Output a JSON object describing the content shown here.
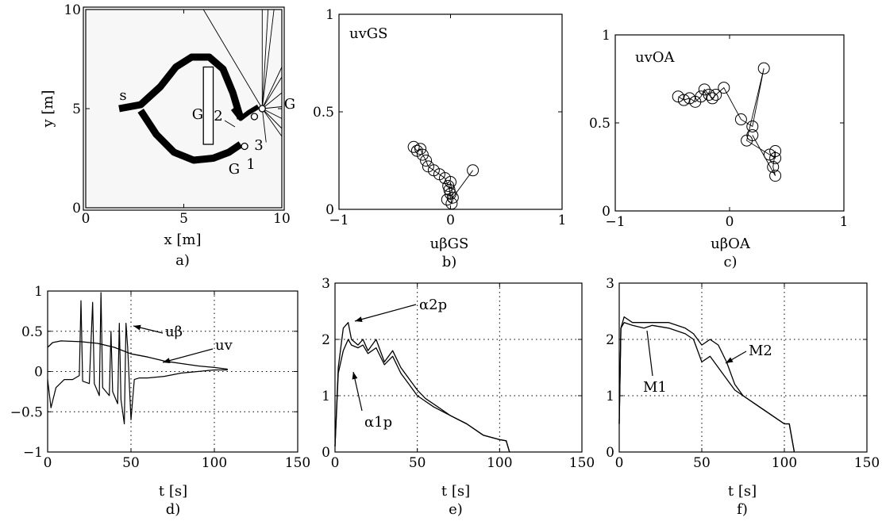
{
  "panels": [
    {
      "key": "a",
      "caption": "a)",
      "xlabel": "x [m]",
      "ylabel": "y [m]"
    },
    {
      "key": "b",
      "caption": "b)",
      "xlabel": "uβGS",
      "inner_label": "uvGS"
    },
    {
      "key": "c",
      "caption": "c)",
      "xlabel": "uβOA",
      "inner_label": "uvOA"
    },
    {
      "key": "d",
      "caption": "d)",
      "xlabel": "t [s]"
    },
    {
      "key": "e",
      "caption": "e)",
      "xlabel": "t [s]"
    },
    {
      "key": "f",
      "caption": "f)",
      "xlabel": "t [s]"
    }
  ],
  "chart_data": [
    {
      "id": "a",
      "type": "scatter",
      "xlim": [
        0,
        10
      ],
      "ylim": [
        0,
        10
      ],
      "xticks": [
        0,
        5,
        10
      ],
      "yticks": [
        0,
        5,
        10
      ],
      "xlabel": "x [m]",
      "ylabel": "y [m]",
      "annotations": [
        "s",
        "G",
        "G",
        "G",
        "1",
        "2",
        "3"
      ],
      "paths": {
        "upper": [
          [
            1.7,
            5.0
          ],
          [
            2.8,
            5.2
          ],
          [
            3.8,
            6.1
          ],
          [
            4.6,
            7.1
          ],
          [
            5.4,
            7.6
          ],
          [
            6.3,
            7.6
          ],
          [
            7.0,
            7.0
          ],
          [
            7.5,
            5.8
          ],
          [
            7.9,
            4.5
          ]
        ],
        "lower": [
          [
            2.8,
            4.9
          ],
          [
            3.6,
            3.7
          ],
          [
            4.5,
            2.8
          ],
          [
            5.5,
            2.4
          ],
          [
            6.5,
            2.5
          ],
          [
            7.3,
            2.8
          ],
          [
            7.9,
            3.2
          ]
        ],
        "branch2": [
          [
            7.5,
            5.0
          ],
          [
            7.9,
            4.5
          ],
          [
            8.3,
            4.8
          ],
          [
            8.8,
            5.1
          ]
        ],
        "ray_origin": [
          9.0,
          5.0
        ],
        "ray_ends": [
          [
            6.0,
            10.0
          ],
          [
            9.0,
            10.0
          ],
          [
            9.3,
            10.0
          ],
          [
            9.6,
            10.0
          ],
          [
            10.0,
            7.1
          ],
          [
            10.0,
            6.6
          ],
          [
            10.0,
            5.8
          ],
          [
            10.0,
            5.1
          ],
          [
            10.0,
            4.5
          ],
          [
            10.0,
            4.0
          ],
          [
            10.0,
            3.6
          ],
          [
            9.2,
            3.3
          ]
        ],
        "obstacle": {
          "x0": 6.0,
          "x1": 6.5,
          "y0": 3.2,
          "y1": 7.1
        },
        "goals": [
          [
            8.1,
            3.1
          ],
          [
            8.6,
            4.6
          ],
          [
            9.0,
            5.0
          ]
        ]
      }
    },
    {
      "id": "b",
      "type": "scatter",
      "xlim": [
        -1,
        1
      ],
      "ylim": [
        0,
        1
      ],
      "xticks": [
        -1,
        0,
        1
      ],
      "yticks": [
        0,
        0.5,
        1
      ],
      "xlabel": "uβGS",
      "ylabel": "uvGS",
      "points": [
        [
          -0.33,
          0.32
        ],
        [
          -0.3,
          0.3
        ],
        [
          -0.27,
          0.31
        ],
        [
          -0.25,
          0.28
        ],
        [
          -0.22,
          0.25
        ],
        [
          -0.2,
          0.22
        ],
        [
          -0.15,
          0.2
        ],
        [
          -0.1,
          0.18
        ],
        [
          -0.05,
          0.16
        ],
        [
          -0.02,
          0.12
        ],
        [
          0.0,
          0.08
        ],
        [
          -0.03,
          0.05
        ],
        [
          0.01,
          0.03
        ],
        [
          -0.01,
          0.1
        ],
        [
          0.0,
          0.14
        ],
        [
          0.02,
          0.06
        ],
        [
          0.2,
          0.2
        ]
      ]
    },
    {
      "id": "c",
      "type": "scatter",
      "xlim": [
        -1,
        1
      ],
      "ylim": [
        0,
        1
      ],
      "xticks": [
        -1,
        0,
        1
      ],
      "yticks": [
        0,
        0.5,
        1
      ],
      "xlabel": "uβOA",
      "ylabel": "uvOA",
      "points": [
        [
          -0.45,
          0.65
        ],
        [
          -0.4,
          0.63
        ],
        [
          -0.35,
          0.64
        ],
        [
          -0.3,
          0.62
        ],
        [
          -0.25,
          0.65
        ],
        [
          -0.22,
          0.69
        ],
        [
          -0.18,
          0.66
        ],
        [
          -0.15,
          0.64
        ],
        [
          -0.12,
          0.66
        ],
        [
          -0.05,
          0.7
        ],
        [
          0.1,
          0.52
        ],
        [
          0.2,
          0.48
        ],
        [
          0.3,
          0.81
        ],
        [
          0.15,
          0.4
        ],
        [
          0.35,
          0.32
        ],
        [
          0.4,
          0.3
        ],
        [
          0.4,
          0.34
        ],
        [
          0.38,
          0.25
        ],
        [
          0.4,
          0.2
        ],
        [
          0.2,
          0.43
        ]
      ]
    },
    {
      "id": "d",
      "type": "line",
      "xlim": [
        0,
        150
      ],
      "ylim": [
        -1,
        1
      ],
      "xticks": [
        0,
        50,
        100,
        150
      ],
      "yticks": [
        -1,
        -0.5,
        0,
        0.5,
        1
      ],
      "xlabel": "t [s]",
      "grid": true,
      "annotations": [
        "uβ",
        "uv"
      ],
      "series": [
        {
          "name": "uv",
          "points": [
            [
              0,
              0.3
            ],
            [
              3,
              0.36
            ],
            [
              8,
              0.38
            ],
            [
              20,
              0.37
            ],
            [
              30,
              0.35
            ],
            [
              40,
              0.3
            ],
            [
              50,
              0.22
            ],
            [
              60,
              0.18
            ],
            [
              70,
              0.13
            ],
            [
              80,
              0.1
            ],
            [
              90,
              0.07
            ],
            [
              100,
              0.05
            ],
            [
              108,
              0.03
            ]
          ]
        },
        {
          "name": "uβ",
          "points": [
            [
              0,
              -0.1
            ],
            [
              2,
              -0.45
            ],
            [
              5,
              -0.2
            ],
            [
              10,
              -0.1
            ],
            [
              15,
              -0.1
            ],
            [
              19,
              -0.05
            ],
            [
              20,
              0.88
            ],
            [
              21,
              -0.12
            ],
            [
              25,
              -0.15
            ],
            [
              27,
              0.86
            ],
            [
              28,
              -0.15
            ],
            [
              31,
              -0.3
            ],
            [
              32,
              0.98
            ],
            [
              33,
              -0.2
            ],
            [
              37,
              -0.3
            ],
            [
              38,
              0.5
            ],
            [
              39,
              -0.25
            ],
            [
              42,
              -0.4
            ],
            [
              43,
              0.6
            ],
            [
              44,
              -0.35
            ],
            [
              46,
              -0.65
            ],
            [
              47,
              0.6
            ],
            [
              48,
              0.3
            ],
            [
              50,
              -0.6
            ],
            [
              52,
              -0.1
            ],
            [
              55,
              -0.08
            ],
            [
              60,
              -0.08
            ],
            [
              70,
              -0.06
            ],
            [
              80,
              -0.02
            ],
            [
              90,
              0.0
            ],
            [
              100,
              0.02
            ],
            [
              108,
              0.02
            ]
          ]
        }
      ]
    },
    {
      "id": "e",
      "type": "line",
      "xlim": [
        0,
        150
      ],
      "ylim": [
        0,
        3
      ],
      "xticks": [
        0,
        50,
        100,
        150
      ],
      "yticks": [
        0,
        1,
        2,
        3
      ],
      "xlabel": "t [s]",
      "grid": true,
      "annotations": [
        "α2p",
        "α1p"
      ],
      "series": [
        {
          "name": "α2p",
          "points": [
            [
              0,
              0.1
            ],
            [
              2,
              1.5
            ],
            [
              5,
              2.2
            ],
            [
              8,
              2.3
            ],
            [
              10,
              2.0
            ],
            [
              14,
              1.9
            ],
            [
              17,
              2.0
            ],
            [
              20,
              1.8
            ],
            [
              25,
              2.0
            ],
            [
              30,
              1.6
            ],
            [
              35,
              1.8
            ],
            [
              40,
              1.5
            ],
            [
              45,
              1.3
            ],
            [
              50,
              1.1
            ],
            [
              55,
              0.95
            ],
            [
              60,
              0.85
            ],
            [
              70,
              0.65
            ],
            [
              80,
              0.5
            ],
            [
              90,
              0.3
            ],
            [
              100,
              0.22
            ],
            [
              104,
              0.2
            ],
            [
              106,
              0.0
            ]
          ]
        },
        {
          "name": "α1p",
          "points": [
            [
              0,
              0.1
            ],
            [
              2,
              1.4
            ],
            [
              5,
              1.8
            ],
            [
              8,
              2.0
            ],
            [
              10,
              1.9
            ],
            [
              14,
              1.85
            ],
            [
              17,
              1.9
            ],
            [
              20,
              1.75
            ],
            [
              25,
              1.85
            ],
            [
              30,
              1.55
            ],
            [
              35,
              1.7
            ],
            [
              40,
              1.4
            ],
            [
              45,
              1.2
            ],
            [
              50,
              1.0
            ],
            [
              55,
              0.9
            ],
            [
              60,
              0.8
            ],
            [
              70,
              0.65
            ],
            [
              80,
              0.5
            ],
            [
              90,
              0.3
            ],
            [
              100,
              0.22
            ],
            [
              104,
              0.2
            ],
            [
              106,
              0.0
            ]
          ]
        }
      ]
    },
    {
      "id": "f",
      "type": "line",
      "xlim": [
        0,
        150
      ],
      "ylim": [
        0,
        3
      ],
      "xticks": [
        0,
        50,
        100,
        150
      ],
      "yticks": [
        0,
        1,
        2,
        3
      ],
      "xlabel": "t [s]",
      "grid": true,
      "annotations": [
        "M1",
        "M2"
      ],
      "series": [
        {
          "name": "M2",
          "points": [
            [
              0,
              0.5
            ],
            [
              1,
              2.2
            ],
            [
              3,
              2.4
            ],
            [
              8,
              2.3
            ],
            [
              15,
              2.3
            ],
            [
              20,
              2.3
            ],
            [
              30,
              2.3
            ],
            [
              40,
              2.2
            ],
            [
              45,
              2.1
            ],
            [
              50,
              1.9
            ],
            [
              55,
              2.0
            ],
            [
              60,
              1.9
            ],
            [
              65,
              1.6
            ],
            [
              70,
              1.2
            ],
            [
              75,
              1.0
            ],
            [
              80,
              0.9
            ],
            [
              90,
              0.7
            ],
            [
              100,
              0.5
            ],
            [
              103,
              0.5
            ],
            [
              106,
              0.0
            ]
          ]
        },
        {
          "name": "M1",
          "points": [
            [
              0,
              0.5
            ],
            [
              1,
              2.2
            ],
            [
              3,
              2.3
            ],
            [
              8,
              2.25
            ],
            [
              15,
              2.2
            ],
            [
              20,
              2.25
            ],
            [
              30,
              2.2
            ],
            [
              40,
              2.1
            ],
            [
              45,
              2.0
            ],
            [
              50,
              1.6
            ],
            [
              55,
              1.7
            ],
            [
              60,
              1.5
            ],
            [
              65,
              1.3
            ],
            [
              70,
              1.1
            ],
            [
              75,
              1.0
            ],
            [
              80,
              0.9
            ],
            [
              90,
              0.7
            ],
            [
              100,
              0.5
            ],
            [
              103,
              0.5
            ],
            [
              106,
              0.0
            ]
          ]
        }
      ]
    }
  ]
}
